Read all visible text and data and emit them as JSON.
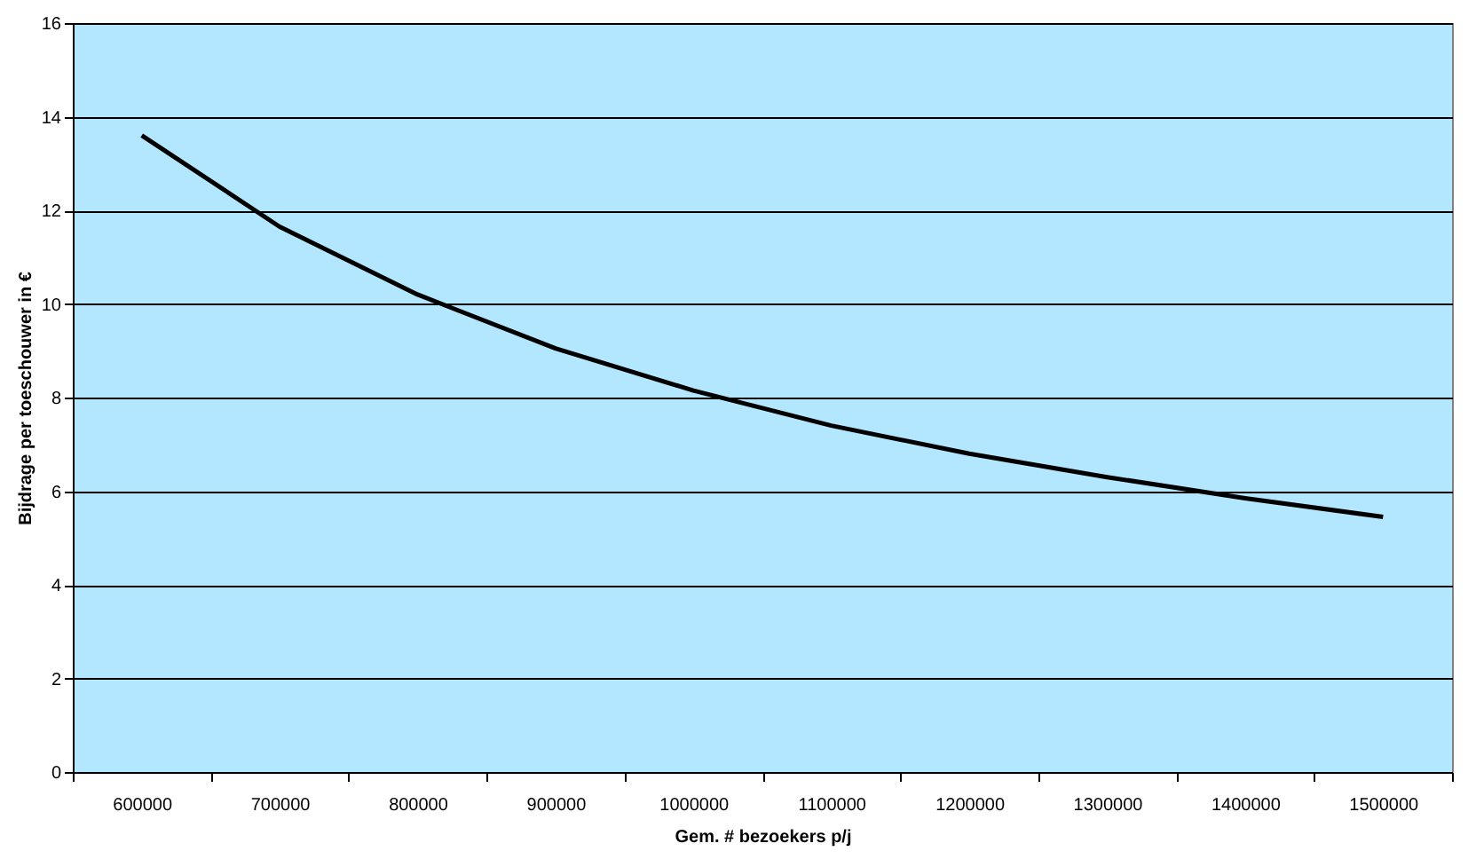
{
  "chart_data": {
    "type": "line",
    "xlabel": "Gem. # bezoekers p/j",
    "ylabel": "Bijdrage per toeschouwer in €",
    "categories": [
      "600000",
      "700000",
      "800000",
      "900000",
      "1000000",
      "1100000",
      "1200000",
      "1300000",
      "1400000",
      "1500000"
    ],
    "series": [
      {
        "color": "#000000",
        "values": [
          13.6,
          11.65,
          10.2,
          9.05,
          8.15,
          7.4,
          6.8,
          6.3,
          5.85,
          5.45
        ]
      }
    ],
    "ylim": [
      0,
      16
    ],
    "yticks": [
      0,
      2,
      4,
      6,
      8,
      10,
      12,
      14,
      16
    ],
    "grid": "y",
    "marker": "none",
    "line_style": "solid"
  }
}
